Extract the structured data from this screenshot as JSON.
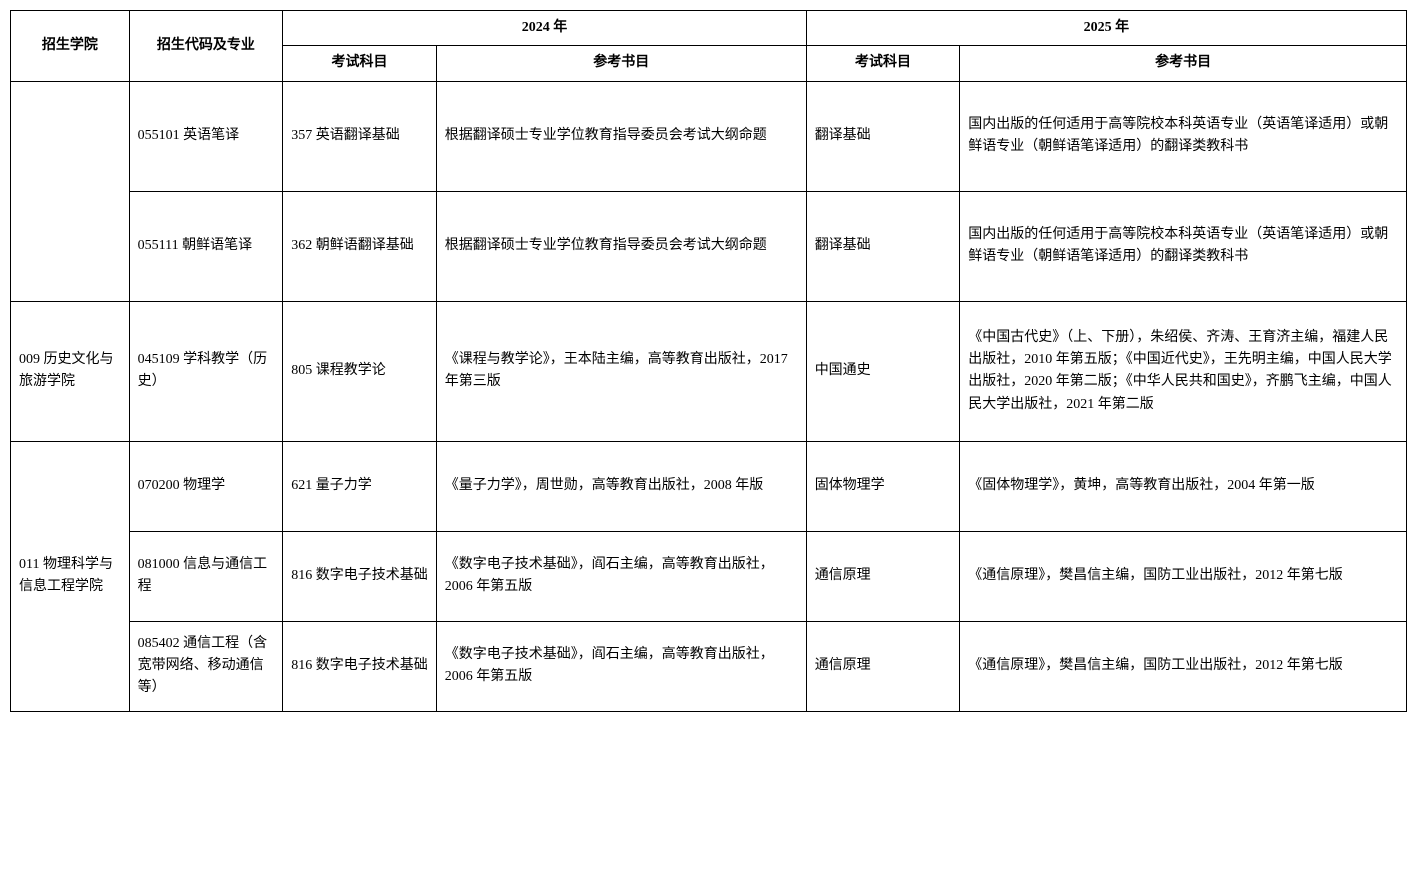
{
  "headers": {
    "college": "招生学院",
    "code_major": "招生代码及专业",
    "year_2024": "2024 年",
    "year_2025": "2025 年",
    "exam_subject": "考试科目",
    "reference": "参考书目"
  },
  "rows": [
    {
      "college": "",
      "code": "055101 英语笔译",
      "subject_2024": "357 英语翻译基础",
      "ref_2024": "根据翻译硕士专业学位教育指导委员会考试大纲命题",
      "subject_2025": "翻译基础",
      "ref_2025": "国内出版的任何适用于高等院校本科英语专业（英语笔译适用）或朝鲜语专业（朝鲜语笔译适用）的翻译类教科书"
    },
    {
      "college": "",
      "code": "055111  朝鲜语笔译",
      "subject_2024": "362 朝鲜语翻译基础",
      "ref_2024": "根据翻译硕士专业学位教育指导委员会考试大纲命题",
      "subject_2025": "翻译基础",
      "ref_2025": "国内出版的任何适用于高等院校本科英语专业（英语笔译适用）或朝鲜语专业（朝鲜语笔译适用）的翻译类教科书"
    },
    {
      "college": "009 历史文化与旅游学院",
      "code": "045109 学科教学（历史）",
      "subject_2024": "805 课程教学论",
      "ref_2024": "《课程与教学论》，王本陆主编，高等教育出版社，2017 年第三版",
      "subject_2025": "中国通史",
      "ref_2025": "《中国古代史》（上、下册），朱绍侯、齐涛、王育济主编，福建人民出版社，2010 年第五版；《中国近代史》，王先明主编，中国人民大学出版社，2020 年第二版；《中华人民共和国史》，齐鹏飞主编，中国人民大学出版社，2021 年第二版"
    },
    {
      "college": "011 物理科学与信息工程学院",
      "code": "070200 物理学",
      "subject_2024": "621 量子力学",
      "ref_2024": "《量子力学》，周世勋，高等教育出版社，2008 年版",
      "subject_2025": "固体物理学",
      "ref_2025": "《固体物理学》，黄坤，高等教育出版社，2004 年第一版"
    },
    {
      "college": "",
      "code": "081000 信息与通信工程",
      "subject_2024": "816 数字电子技术基础",
      "ref_2024": "《数字电子技术基础》，阎石主编，高等教育出版社，2006 年第五版",
      "subject_2025": "通信原理",
      "ref_2025": "《通信原理》，樊昌信主编，国防工业出版社，2012 年第七版"
    },
    {
      "college": "",
      "code": "085402 通信工程（含宽带网络、移动通信等）",
      "subject_2024": "816 数字电子技术基础",
      "ref_2024": "《数字电子技术基础》，阎石主编，高等教育出版社，2006 年第五版",
      "subject_2025": "通信原理",
      "ref_2025": "《通信原理》，樊昌信主编，国防工业出版社，2012 年第七版"
    }
  ]
}
